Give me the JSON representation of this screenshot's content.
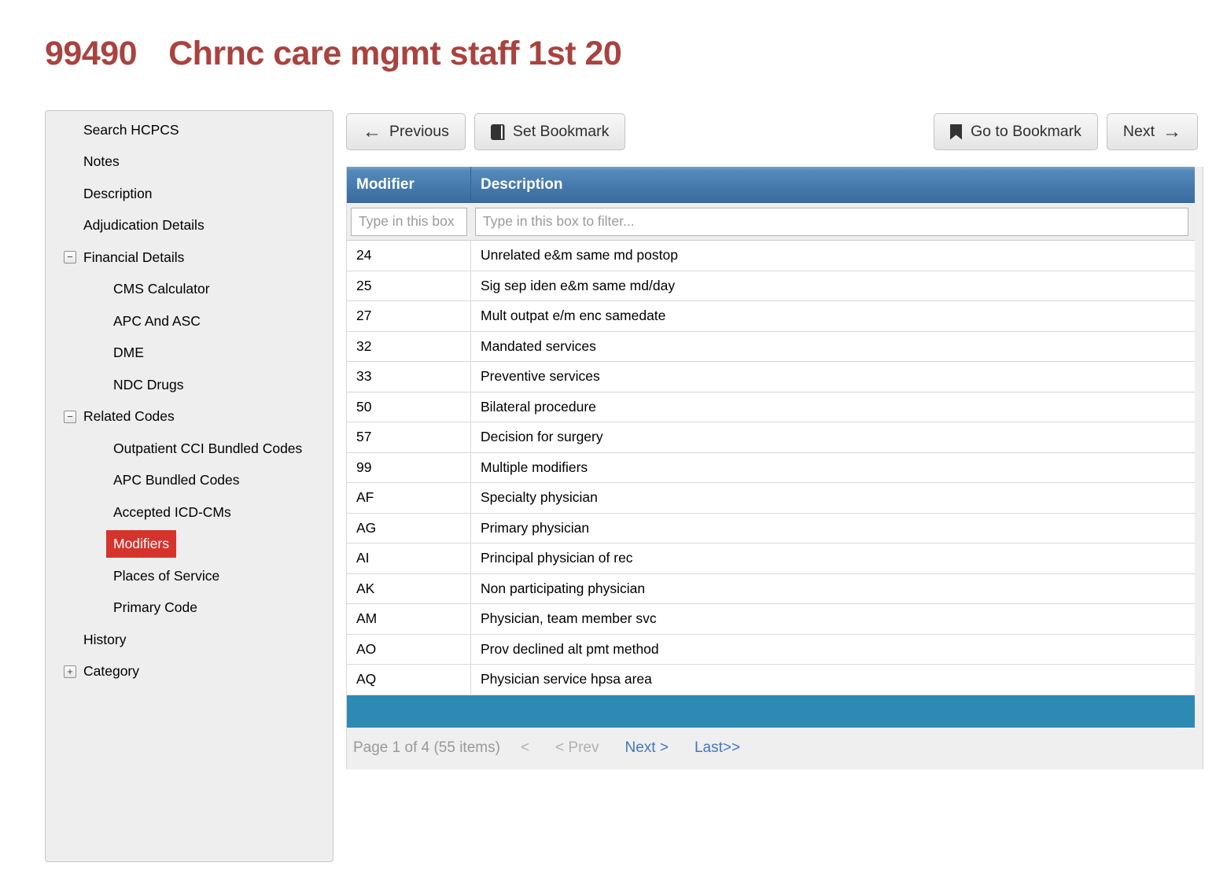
{
  "page": {
    "code": "99490",
    "title": "Chrnc care mgmt staff 1st 20"
  },
  "sidebar": {
    "items": [
      {
        "key": "search-hcpcs",
        "label": "Search HCPCS",
        "level": 0,
        "expander": null,
        "selected": false
      },
      {
        "key": "notes",
        "label": "Notes",
        "level": 0,
        "expander": null,
        "selected": false
      },
      {
        "key": "description",
        "label": "Description",
        "level": 0,
        "expander": null,
        "selected": false
      },
      {
        "key": "adjudication-details",
        "label": "Adjudication Details",
        "level": 0,
        "expander": null,
        "selected": false
      },
      {
        "key": "financial-details",
        "label": "Financial Details",
        "level": 0,
        "expander": "minus",
        "selected": false
      },
      {
        "key": "cms-calculator",
        "label": "CMS Calculator",
        "level": 1,
        "expander": null,
        "selected": false
      },
      {
        "key": "apc-and-asc",
        "label": "APC And ASC",
        "level": 1,
        "expander": null,
        "selected": false
      },
      {
        "key": "dme",
        "label": "DME",
        "level": 1,
        "expander": null,
        "selected": false
      },
      {
        "key": "ndc-drugs",
        "label": "NDC Drugs",
        "level": 1,
        "expander": null,
        "selected": false
      },
      {
        "key": "related-codes",
        "label": "Related Codes",
        "level": 0,
        "expander": "minus",
        "selected": false
      },
      {
        "key": "outpatient-cci-bundled-codes",
        "label": "Outpatient CCI Bundled Codes",
        "level": 1,
        "expander": null,
        "selected": false
      },
      {
        "key": "apc-bundled-codes",
        "label": "APC Bundled Codes",
        "level": 1,
        "expander": null,
        "selected": false
      },
      {
        "key": "accepted-icd-cms",
        "label": "Accepted ICD-CMs",
        "level": 1,
        "expander": null,
        "selected": false
      },
      {
        "key": "modifiers",
        "label": "Modifiers",
        "level": 1,
        "expander": null,
        "selected": true
      },
      {
        "key": "places-of-service",
        "label": "Places of Service",
        "level": 1,
        "expander": null,
        "selected": false
      },
      {
        "key": "primary-code",
        "label": "Primary Code",
        "level": 1,
        "expander": null,
        "selected": false
      },
      {
        "key": "history",
        "label": "History",
        "level": 0,
        "expander": null,
        "selected": false
      },
      {
        "key": "category",
        "label": "Category",
        "level": 0,
        "expander": "plus",
        "selected": false
      }
    ]
  },
  "toolbar": {
    "previous_label": "Previous",
    "set_bookmark_label": "Set Bookmark",
    "go_to_bookmark_label": "Go to Bookmark",
    "next_label": "Next",
    "icons": {
      "previous": "left-arrow",
      "previous_glyph": "←",
      "set_bookmark": "book",
      "go_to_bookmark": "bookmark",
      "next": "right-arrow",
      "next_glyph": "→"
    }
  },
  "table": {
    "columns": {
      "modifier": "Modifier",
      "description": "Description"
    },
    "filters": {
      "modifier_value": "",
      "modifier_placeholder": "Type in this box",
      "description_value": "",
      "description_placeholder": "Type in this box to filter..."
    },
    "rows": [
      {
        "modifier": "24",
        "description": "Unrelated e&m same md postop"
      },
      {
        "modifier": "25",
        "description": "Sig sep iden e&m same md/day"
      },
      {
        "modifier": "27",
        "description": "Mult outpat e/m enc samedate"
      },
      {
        "modifier": "32",
        "description": "Mandated services"
      },
      {
        "modifier": "33",
        "description": "Preventive services"
      },
      {
        "modifier": "50",
        "description": "Bilateral procedure"
      },
      {
        "modifier": "57",
        "description": "Decision for surgery"
      },
      {
        "modifier": "99",
        "description": "Multiple modifiers"
      },
      {
        "modifier": "AF",
        "description": "Specialty physician"
      },
      {
        "modifier": "AG",
        "description": "Primary physician"
      },
      {
        "modifier": "AI",
        "description": "Principal physician of rec"
      },
      {
        "modifier": "AK",
        "description": "Non participating physician"
      },
      {
        "modifier": "AM",
        "description": "Physician, team member svc"
      },
      {
        "modifier": "AO",
        "description": "Prov declined alt pmt method"
      },
      {
        "modifier": "AQ",
        "description": "Physician service hpsa area"
      }
    ]
  },
  "pagination": {
    "status": "Page 1 of 4 (55 items)",
    "first": "<",
    "prev": "< Prev",
    "next": "Next >",
    "last": "Last>>"
  },
  "colors": {
    "title_red": "#a9433f",
    "selected_red": "#d5342c",
    "header_blue_top": "#5389ba",
    "header_blue_bottom": "#3a6b9e",
    "bar_teal": "#2d8ab5",
    "link_blue": "#4176c4"
  }
}
